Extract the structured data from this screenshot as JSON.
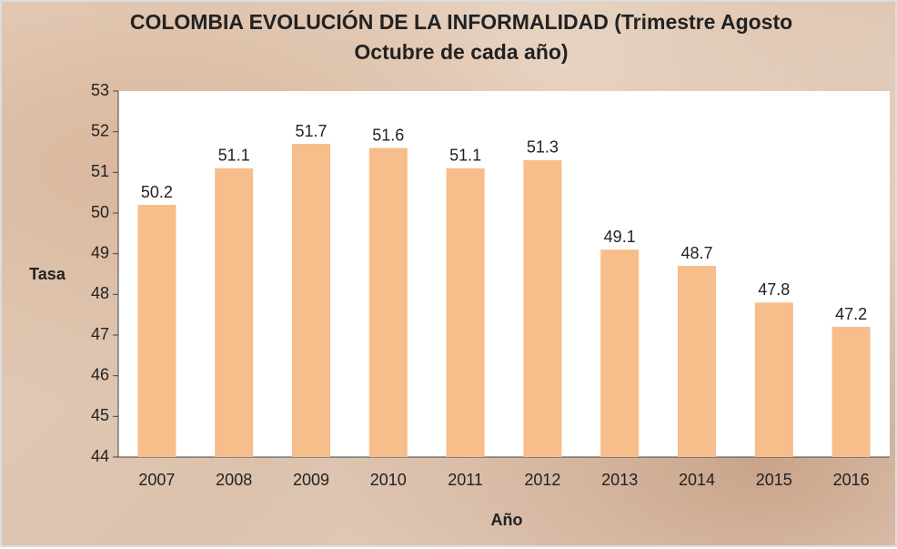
{
  "chart_data": {
    "type": "bar",
    "title": "COLOMBIA EVOLUCIÓN DE LA INFORMALIDAD (Trimestre Agosto Octubre de cada año)",
    "x_label": "Año",
    "y_label": "Tasa",
    "categories": [
      "2007",
      "2008",
      "2009",
      "2010",
      "2011",
      "2012",
      "2013",
      "2014",
      "2015",
      "2016"
    ],
    "values": [
      50.2,
      51.1,
      51.7,
      51.6,
      51.1,
      51.3,
      49.1,
      48.7,
      47.8,
      47.2
    ],
    "color": "#f7bd8a",
    "ylim": [
      44,
      53
    ],
    "yticks": [
      44,
      45,
      46,
      47,
      48,
      49,
      50,
      51,
      52,
      53
    ],
    "grid": false
  }
}
